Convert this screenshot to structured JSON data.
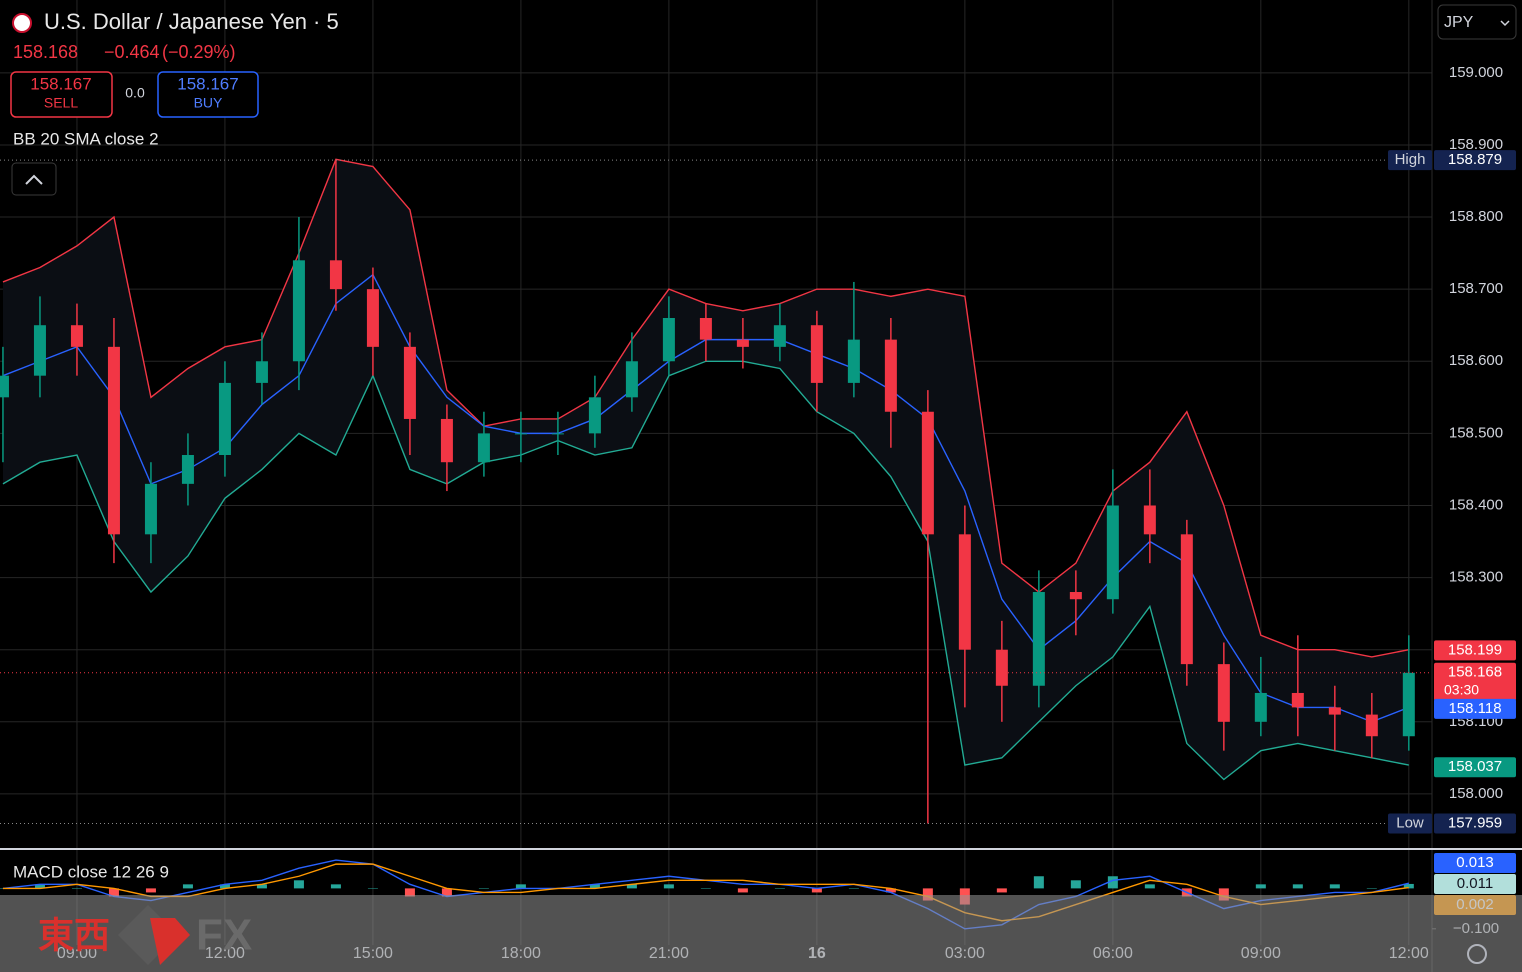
{
  "header": {
    "symbol_title": "U.S. Dollar / Japanese Yen · 5",
    "last": "158.168",
    "change": "−0.464",
    "change_pct": "(−0.29%)",
    "sell_price": "158.167",
    "sell_label": "SELL",
    "spread": "0.0",
    "buy_price": "158.167",
    "buy_label": "BUY",
    "currency": "JPY"
  },
  "watermark": {
    "brand_cjk": "東西",
    "brand_latin": "FX"
  },
  "chart_data": [
    {
      "type": "candlestick",
      "indicator_label": "BB 20 SMA close 2",
      "x": [
        -1.5,
        -0.75,
        0,
        0.75,
        1.5,
        2.25,
        3,
        3.75,
        4.5,
        5.25,
        6,
        6.75,
        7.5,
        8.25,
        9,
        9.75,
        10.5,
        11.25,
        12,
        12.75,
        13.5,
        14.25,
        15,
        15.75,
        16.5,
        17.25,
        18,
        18.75,
        19.5,
        20.25,
        21,
        21.75,
        22.5,
        23.25,
        24,
        24.75,
        25.5,
        26.25,
        27
      ],
      "open": [
        158.55,
        158.58,
        158.65,
        158.62,
        158.36,
        158.43,
        158.47,
        158.57,
        158.6,
        158.74,
        158.7,
        158.62,
        158.52,
        158.46,
        158.5,
        158.5,
        158.5,
        158.55,
        158.6,
        158.66,
        158.63,
        158.62,
        158.65,
        158.57,
        158.63,
        158.53,
        158.36,
        158.2,
        158.15,
        158.28,
        158.27,
        158.4,
        158.36,
        158.18,
        158.1,
        158.14,
        158.12,
        158.11,
        158.08
      ],
      "high": [
        158.62,
        158.69,
        158.68,
        158.66,
        158.46,
        158.5,
        158.6,
        158.64,
        158.8,
        158.879,
        158.73,
        158.64,
        158.54,
        158.53,
        158.53,
        158.53,
        158.58,
        158.64,
        158.69,
        158.68,
        158.66,
        158.68,
        158.67,
        158.71,
        158.66,
        158.56,
        158.4,
        158.24,
        158.31,
        158.31,
        158.45,
        158.45,
        158.38,
        158.21,
        158.19,
        158.22,
        158.15,
        158.14,
        158.22
      ],
      "low": [
        158.46,
        158.55,
        158.58,
        158.32,
        158.32,
        158.4,
        158.44,
        158.54,
        158.56,
        158.67,
        158.58,
        158.47,
        158.42,
        158.44,
        158.46,
        158.47,
        158.48,
        158.53,
        158.58,
        158.6,
        158.59,
        158.6,
        158.53,
        158.55,
        158.48,
        157.959,
        158.12,
        158.1,
        158.12,
        158.22,
        158.25,
        158.32,
        158.15,
        158.06,
        158.08,
        158.08,
        158.06,
        158.05,
        158.06
      ],
      "close": [
        158.58,
        158.65,
        158.62,
        158.36,
        158.43,
        158.47,
        158.57,
        158.6,
        158.74,
        158.7,
        158.62,
        158.52,
        158.46,
        158.5,
        158.5,
        158.5,
        158.55,
        158.6,
        158.66,
        158.63,
        158.62,
        158.65,
        158.57,
        158.63,
        158.53,
        158.36,
        158.2,
        158.15,
        158.28,
        158.27,
        158.4,
        158.36,
        158.18,
        158.1,
        158.14,
        158.12,
        158.11,
        158.08,
        158.168
      ],
      "up_color": "#089981",
      "down_color": "#f23645",
      "series": [
        {
          "color": "#f23645",
          "values": [
            158.71,
            158.73,
            158.76,
            158.8,
            158.55,
            158.59,
            158.62,
            158.63,
            158.75,
            158.88,
            158.87,
            158.81,
            158.56,
            158.51,
            158.52,
            158.52,
            158.55,
            158.63,
            158.7,
            158.68,
            158.67,
            158.68,
            158.7,
            158.7,
            158.69,
            158.7,
            158.69,
            158.32,
            158.28,
            158.32,
            158.42,
            158.46,
            158.53,
            158.4,
            158.22,
            158.2,
            158.2,
            158.19,
            158.2
          ]
        },
        {
          "color": "#2962ff",
          "values": [
            158.58,
            158.6,
            158.62,
            158.55,
            158.43,
            158.45,
            158.48,
            158.54,
            158.58,
            158.68,
            158.72,
            158.62,
            158.55,
            158.51,
            158.5,
            158.5,
            158.52,
            158.56,
            158.6,
            158.63,
            158.63,
            158.63,
            158.61,
            158.59,
            158.56,
            158.52,
            158.42,
            158.27,
            158.2,
            158.24,
            158.3,
            158.35,
            158.32,
            158.22,
            158.14,
            158.12,
            158.12,
            158.1,
            158.12
          ]
        },
        {
          "color": "#22ab94",
          "values": [
            158.43,
            158.46,
            158.47,
            158.35,
            158.28,
            158.33,
            158.41,
            158.45,
            158.5,
            158.47,
            158.58,
            158.45,
            158.43,
            158.46,
            158.47,
            158.49,
            158.47,
            158.48,
            158.58,
            158.6,
            158.6,
            158.59,
            158.53,
            158.5,
            158.44,
            158.35,
            158.04,
            158.05,
            158.1,
            158.15,
            158.19,
            158.26,
            158.07,
            158.02,
            158.06,
            158.07,
            158.06,
            158.05,
            158.04
          ]
        }
      ],
      "xlim": [
        -1.56,
        27.47
      ],
      "xticks": [
        {
          "value": 0,
          "label": "09:00"
        },
        {
          "value": 3,
          "label": "12:00"
        },
        {
          "value": 6,
          "label": "15:00"
        },
        {
          "value": 9,
          "label": "18:00"
        },
        {
          "value": 12,
          "label": "21:00"
        },
        {
          "value": 15,
          "label": "16",
          "bold": true
        },
        {
          "value": 18,
          "label": "03:00"
        },
        {
          "value": 21,
          "label": "06:00"
        },
        {
          "value": 24,
          "label": "09:00"
        },
        {
          "value": 27,
          "label": "12:00"
        }
      ],
      "ylim": [
        157.925,
        159.101
      ],
      "yticks": [
        {
          "value": 158,
          "label": "158.000"
        },
        {
          "value": 158.1,
          "label": "158.100"
        },
        {
          "value": 158.2,
          "label": "158.200"
        },
        {
          "value": 158.3,
          "label": "158.300"
        },
        {
          "value": 158.4,
          "label": "158.400"
        },
        {
          "value": 158.5,
          "label": "158.500"
        },
        {
          "value": 158.6,
          "label": "158.600"
        },
        {
          "value": 158.7,
          "label": "158.700"
        },
        {
          "value": 158.8,
          "label": "158.800"
        },
        {
          "value": 158.9,
          "label": "158.900"
        },
        {
          "value": 159,
          "label": "159.000"
        }
      ],
      "grid": true,
      "price_badges": [
        {
          "name": "High",
          "value": 158.879,
          "color": "#142350",
          "dotted_line": true
        },
        {
          "value": 158.199,
          "color": "#f23645"
        },
        {
          "value": 158.168,
          "extra": "03:30",
          "color": "#f23645",
          "dotted_line": true
        },
        {
          "value": 158.118,
          "color": "#2962ff"
        },
        {
          "value": 158.037,
          "color": "#089981"
        },
        {
          "name": "Low",
          "value": 157.959,
          "color": "#142350",
          "dotted_line": true
        }
      ]
    },
    {
      "type": "macd",
      "indicator_label": "MACD close 12 26 9",
      "macd": {
        "color": "#2962ff",
        "values": [
          0.0,
          0.01,
          0.01,
          -0.02,
          -0.03,
          -0.01,
          0.01,
          0.02,
          0.05,
          0.07,
          0.06,
          0.01,
          -0.02,
          -0.01,
          0.0,
          0.0,
          0.01,
          0.02,
          0.03,
          0.02,
          0.01,
          0.01,
          0.0,
          0.01,
          -0.01,
          -0.05,
          -0.1,
          -0.09,
          -0.04,
          -0.02,
          0.02,
          0.03,
          -0.01,
          -0.05,
          -0.03,
          -0.02,
          -0.01,
          -0.01,
          0.013
        ]
      },
      "signal": {
        "color": "#ff9800",
        "values": [
          0.0,
          0.0,
          0.01,
          0.0,
          -0.02,
          -0.02,
          0.0,
          0.01,
          0.03,
          0.06,
          0.06,
          0.03,
          0.0,
          -0.01,
          -0.01,
          0.0,
          0.0,
          0.01,
          0.02,
          0.02,
          0.02,
          0.01,
          0.01,
          0.01,
          0.0,
          -0.02,
          -0.06,
          -0.08,
          -0.07,
          -0.04,
          -0.01,
          0.02,
          0.01,
          -0.02,
          -0.04,
          -0.03,
          -0.02,
          -0.01,
          0.002
        ]
      },
      "histogram": {
        "up_color": "#26a69a",
        "down_color": "#ff5252",
        "values": [
          0.0,
          0.01,
          0.0,
          -0.02,
          -0.01,
          0.01,
          0.01,
          0.01,
          0.02,
          0.01,
          0.0,
          -0.02,
          -0.02,
          0.0,
          0.01,
          0.0,
          0.01,
          0.01,
          0.01,
          0.0,
          -0.01,
          0.0,
          -0.01,
          0.0,
          -0.01,
          -0.03,
          -0.04,
          -0.01,
          0.03,
          0.02,
          0.03,
          0.01,
          -0.02,
          -0.03,
          0.01,
          0.01,
          0.01,
          0.0,
          0.011
        ]
      },
      "ylim": [
        -0.14,
        0.09
      ],
      "yticks": [
        {
          "value": -0.1,
          "label": "−0.100"
        }
      ],
      "badges": [
        {
          "value": 0.013,
          "color": "#2962ff",
          "text_color": "#ffffff"
        },
        {
          "value": 0.011,
          "color": "#b2dfdb",
          "text_color": "#131722"
        },
        {
          "value": 0.002,
          "color": "#ff9800",
          "text_color": "#ffffff"
        }
      ]
    }
  ]
}
